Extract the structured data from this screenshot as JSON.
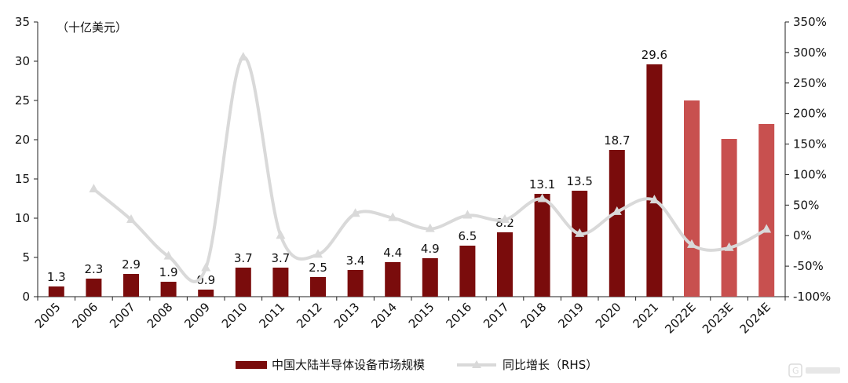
{
  "chart_data": {
    "type": "bar",
    "categories": [
      "2005",
      "2006",
      "2007",
      "2008",
      "2009",
      "2010",
      "2011",
      "2012",
      "2013",
      "2014",
      "2015",
      "2016",
      "2017",
      "2018",
      "2019",
      "2020",
      "2021",
      "2022E",
      "2023E",
      "2024E"
    ],
    "unit_label": "（十亿美元）",
    "series": [
      {
        "name": "中国大陆半导体设备市场规模",
        "type": "bar",
        "axis": "left",
        "values": [
          1.3,
          2.3,
          2.9,
          1.9,
          0.9,
          3.7,
          3.7,
          2.5,
          3.4,
          4.4,
          4.9,
          6.5,
          8.2,
          13.1,
          13.5,
          18.7,
          29.6,
          25.0,
          20.1,
          22.0
        ],
        "labels": [
          "1.3",
          "2.3",
          "2.9",
          "1.9",
          "0.9",
          "3.7",
          "3.7",
          "2.5",
          "3.4",
          "4.4",
          "4.9",
          "6.5",
          "8.2",
          "13.1",
          "13.5",
          "18.7",
          "29.6",
          "",
          "",
          ""
        ],
        "color": "#7a0c0c",
        "forecast_color": "#c8504f",
        "forecast_from_index": 17
      },
      {
        "name": "同比增长（RHS）",
        "type": "line",
        "axis": "right",
        "values": [
          null,
          76,
          26,
          -34,
          -53,
          292,
          0,
          -31,
          36,
          29,
          11,
          33,
          26,
          60,
          3,
          39,
          58,
          -15,
          -20,
          10
        ],
        "color": "#d9d9d9"
      }
    ],
    "left_axis": {
      "min": 0,
      "max": 35,
      "ticks": [
        "0",
        "5",
        "10",
        "15",
        "20",
        "25",
        "30",
        "35"
      ]
    },
    "right_axis": {
      "min": -100,
      "max": 350,
      "ticks": [
        "-100%",
        "-50%",
        "0%",
        "50%",
        "100%",
        "150%",
        "200%",
        "250%",
        "300%",
        "350%"
      ]
    },
    "grid": false,
    "legend_position": "bottom"
  }
}
